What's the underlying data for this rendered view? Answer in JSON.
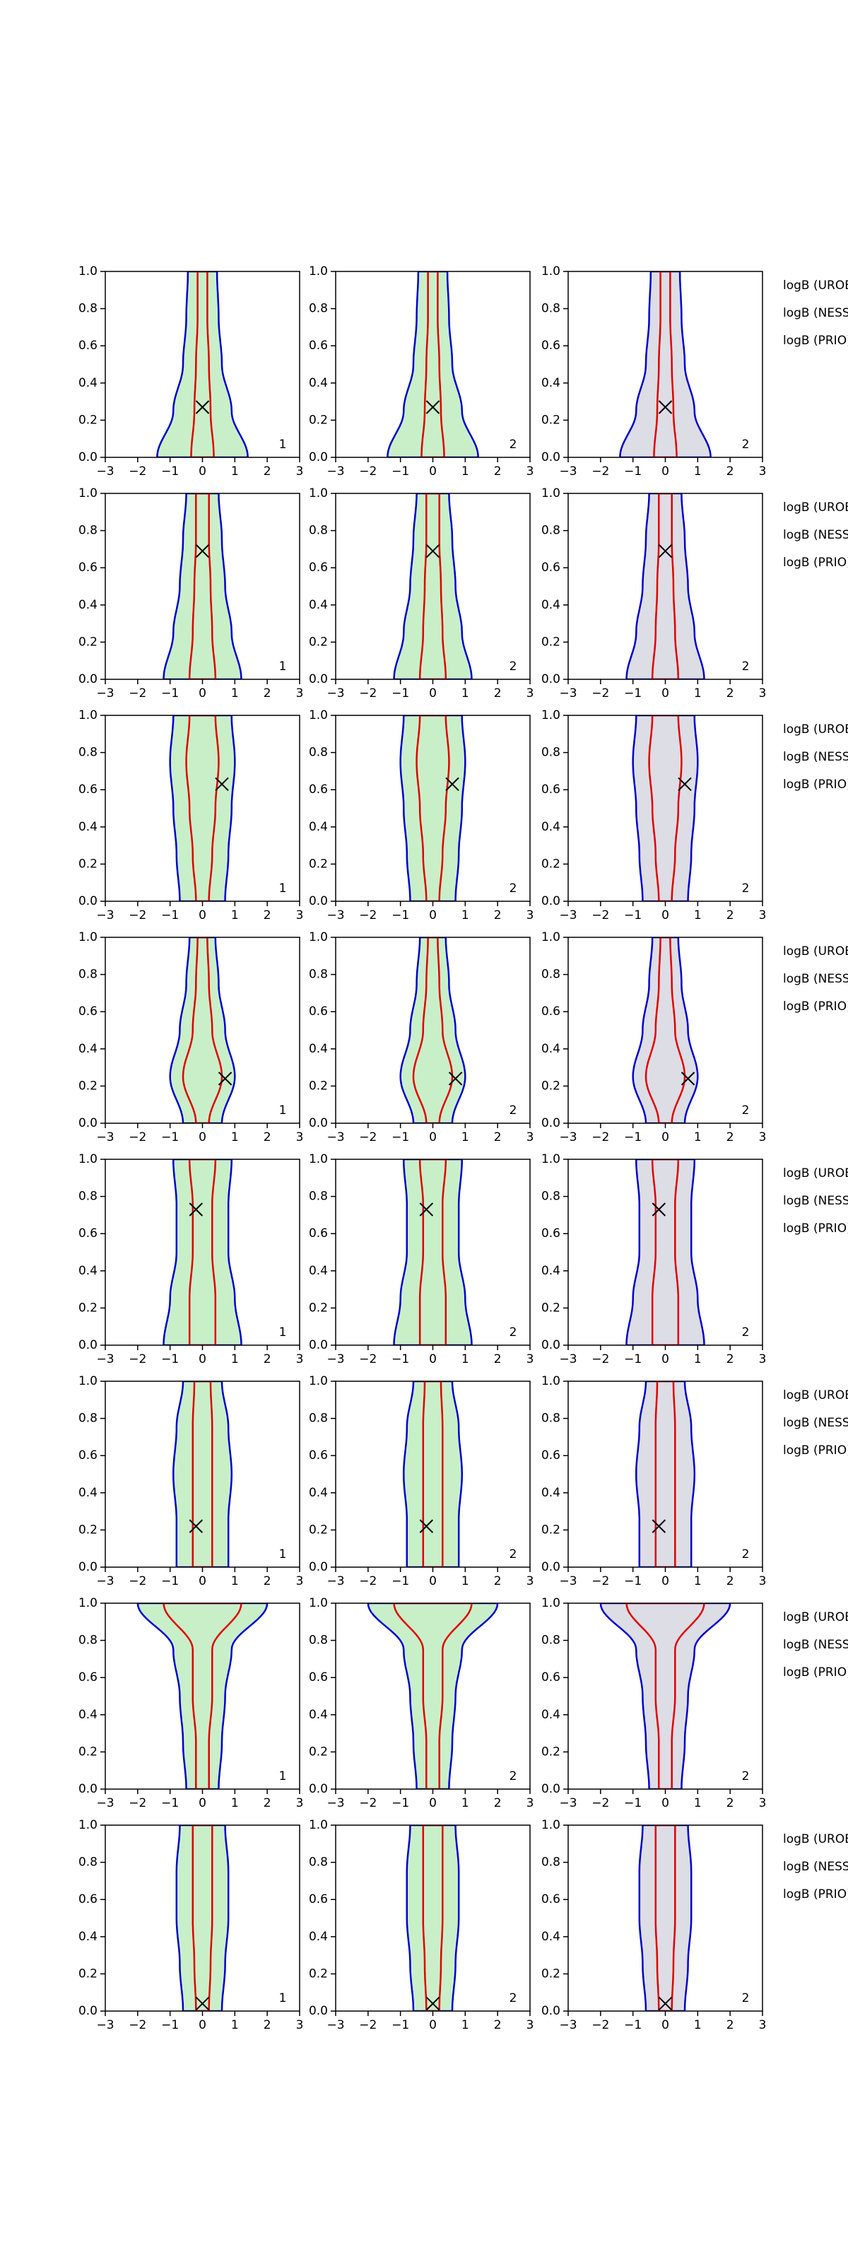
{
  "chart_data": {
    "type": "contour",
    "xlim": [
      -3,
      3
    ],
    "ylim": [
      0,
      1
    ],
    "xticks": [
      {
        "value": -3,
        "label": "−3"
      },
      {
        "value": -2,
        "label": "−2"
      },
      {
        "value": -1,
        "label": "−1"
      },
      0,
      1,
      2,
      3
    ],
    "yticks": [
      {
        "value": 0,
        "label": "0.0"
      },
      {
        "value": 0.2,
        "label": "0.2"
      },
      {
        "value": 0.4,
        "label": "0.4"
      },
      {
        "value": 0.6,
        "label": "0.6"
      },
      {
        "value": 0.8,
        "label": "0.8"
      },
      {
        "value": 1,
        "label": "1.0"
      }
    ],
    "fill_colors": [
      "#c9efc9",
      "#c9efc9",
      "#dddde6"
    ],
    "outer_color": "#0000cc",
    "inner_color": "#e00000",
    "rows": [
      {
        "marker": [
          0,
          0.27
        ],
        "panel_labels": [
          "1",
          "2",
          "2"
        ],
        "annotations": [
          "logB (UROB) =",
          "logB (NESS) =",
          "logB (PRIO) ="
        ],
        "outer": [
          1.4,
          0.9,
          0.6,
          0.5,
          0.45
        ],
        "inner": [
          0.35,
          0.25,
          0.2,
          0.15,
          0.15
        ]
      },
      {
        "marker": [
          0,
          0.69
        ],
        "panel_labels": [
          "1",
          "2",
          "2"
        ],
        "annotations": [
          "logB (UROB) =",
          "logB (NESS) =",
          "logB (PRIO) ="
        ],
        "outer": [
          1.2,
          0.9,
          0.7,
          0.6,
          0.5
        ],
        "inner": [
          0.4,
          0.3,
          0.25,
          0.2,
          0.2
        ]
      },
      {
        "marker": [
          0.6,
          0.63
        ],
        "panel_labels": [
          "1",
          "2",
          "2"
        ],
        "annotations": [
          "logB (UROB) =",
          "logB (NESS) =",
          "logB (PRIO) ="
        ],
        "outer": [
          0.7,
          0.8,
          0.9,
          1.0,
          0.9
        ],
        "inner": [
          0.2,
          0.3,
          0.4,
          0.5,
          0.4
        ]
      },
      {
        "marker": [
          0.7,
          0.24
        ],
        "panel_labels": [
          "1",
          "2",
          "2"
        ],
        "annotations": [
          "logB (UROB) =",
          "logB (NESS) =",
          "logB (PRIO) ="
        ],
        "outer": [
          0.6,
          1.0,
          0.7,
          0.5,
          0.4
        ],
        "inner": [
          0.2,
          0.6,
          0.3,
          0.2,
          0.15
        ]
      },
      {
        "marker": [
          -0.2,
          0.73
        ],
        "panel_labels": [
          "1",
          "2",
          "2"
        ],
        "annotations": [
          "logB (UROB) =",
          "logB (NESS) =",
          "logB (PRIO) ="
        ],
        "outer": [
          1.2,
          1.0,
          0.8,
          0.8,
          0.9
        ],
        "inner": [
          0.4,
          0.4,
          0.3,
          0.3,
          0.4
        ]
      },
      {
        "marker": [
          -0.2,
          0.22
        ],
        "panel_labels": [
          "1",
          "2",
          "2"
        ],
        "annotations": [
          "logB (UROB) =",
          "logB (NESS) =",
          "logB (PRIO) ="
        ],
        "outer": [
          0.8,
          0.8,
          0.9,
          0.8,
          0.6
        ],
        "inner": [
          0.3,
          0.3,
          0.3,
          0.3,
          0.25
        ]
      },
      {
        "marker": null,
        "panel_labels": [
          "1",
          "2",
          "2"
        ],
        "annotations": [
          "logB (UROB) =",
          "logB (NESS) =",
          "logB (PRIO) ="
        ],
        "outer": [
          0.5,
          0.6,
          0.7,
          0.9,
          2.0
        ],
        "inner": [
          0.2,
          0.2,
          0.3,
          0.3,
          1.2
        ]
      },
      {
        "marker": [
          0,
          0.04
        ],
        "panel_labels": [
          "1",
          "2",
          "2"
        ],
        "annotations": [
          "logB (UROB) =",
          "logB (NESS) =",
          "logB (PRIO) ="
        ],
        "outer": [
          0.6,
          0.7,
          0.8,
          0.8,
          0.7
        ],
        "inner": [
          0.2,
          0.25,
          0.3,
          0.3,
          0.3
        ]
      }
    ]
  }
}
